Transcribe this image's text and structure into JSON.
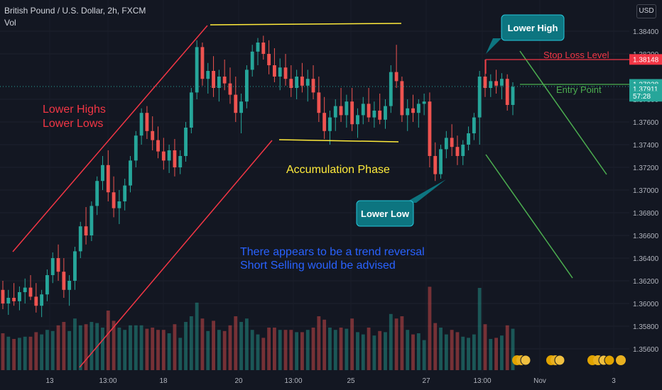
{
  "header": {
    "symbol_line": "British Pound / U.S. Dollar, 2h, FXCM",
    "volume_label": "Vol",
    "currency_button": "USD"
  },
  "colors": {
    "background": "#131722",
    "up": "#26a69a",
    "down": "#ef5350",
    "annotation_red": "#f23645",
    "annotation_yellow": "#ffeb3b",
    "annotation_green": "#4caf50",
    "annotation_blue": "#2962ff",
    "callout_teal": "#0d7580"
  },
  "chart_data": {
    "type": "candlestick",
    "title": "British Pound / U.S. Dollar, 2h, FXCM",
    "x_tick_labels": [
      "13",
      "13:00",
      "18",
      "20",
      "13:00",
      "25",
      "27",
      "13:00",
      "Nov",
      "3"
    ],
    "y_tick_labels": [
      "1.38400",
      "1.38200",
      "1.37800",
      "1.37600",
      "1.37400",
      "1.37200",
      "1.37000",
      "1.36800",
      "1.36600",
      "1.36400",
      "1.36200",
      "1.36000",
      "1.35800",
      "1.35600"
    ],
    "ylim": [
      1.3548,
      1.3862
    ],
    "price_labels": [
      {
        "text": "1.38148",
        "value": 1.38148,
        "color": "#f23645"
      },
      {
        "text": "1.37928",
        "value": 1.37928,
        "color": "#26a69a"
      },
      {
        "text": "1.37911",
        "value": 1.37911,
        "color": "#26a69a"
      },
      {
        "text": "57:28",
        "value": null,
        "color": "#26a69a"
      }
    ],
    "current_price": 1.37911,
    "candles": [
      {
        "o": 1.3612,
        "h": 1.362,
        "l": 1.3595,
        "c": 1.36
      },
      {
        "o": 1.36,
        "h": 1.3612,
        "l": 1.359,
        "c": 1.3605
      },
      {
        "o": 1.3605,
        "h": 1.3618,
        "l": 1.3598,
        "c": 1.3602
      },
      {
        "o": 1.3602,
        "h": 1.3615,
        "l": 1.3594,
        "c": 1.361
      },
      {
        "o": 1.361,
        "h": 1.3622,
        "l": 1.36,
        "c": 1.3614
      },
      {
        "o": 1.3614,
        "h": 1.3625,
        "l": 1.3603,
        "c": 1.3606
      },
      {
        "o": 1.3606,
        "h": 1.3618,
        "l": 1.3592,
        "c": 1.3598
      },
      {
        "o": 1.3598,
        "h": 1.3612,
        "l": 1.3588,
        "c": 1.3608
      },
      {
        "o": 1.3608,
        "h": 1.363,
        "l": 1.3602,
        "c": 1.3625
      },
      {
        "o": 1.3625,
        "h": 1.3645,
        "l": 1.3618,
        "c": 1.364
      },
      {
        "o": 1.364,
        "h": 1.3652,
        "l": 1.362,
        "c": 1.3628
      },
      {
        "o": 1.3628,
        "h": 1.364,
        "l": 1.3605,
        "c": 1.3612
      },
      {
        "o": 1.3612,
        "h": 1.3625,
        "l": 1.3598,
        "c": 1.362
      },
      {
        "o": 1.362,
        "h": 1.365,
        "l": 1.3612,
        "c": 1.3646
      },
      {
        "o": 1.3646,
        "h": 1.3672,
        "l": 1.364,
        "c": 1.3668
      },
      {
        "o": 1.3668,
        "h": 1.3685,
        "l": 1.3652,
        "c": 1.366
      },
      {
        "o": 1.366,
        "h": 1.369,
        "l": 1.3655,
        "c": 1.3686
      },
      {
        "o": 1.3686,
        "h": 1.3712,
        "l": 1.3678,
        "c": 1.3708
      },
      {
        "o": 1.3708,
        "h": 1.373,
        "l": 1.37,
        "c": 1.3722
      },
      {
        "o": 1.3722,
        "h": 1.3735,
        "l": 1.369,
        "c": 1.3698
      },
      {
        "o": 1.3698,
        "h": 1.3712,
        "l": 1.3676,
        "c": 1.3684
      },
      {
        "o": 1.3684,
        "h": 1.37,
        "l": 1.367,
        "c": 1.369
      },
      {
        "o": 1.369,
        "h": 1.371,
        "l": 1.3682,
        "c": 1.3704
      },
      {
        "o": 1.3704,
        "h": 1.373,
        "l": 1.3698,
        "c": 1.3726
      },
      {
        "o": 1.3726,
        "h": 1.3752,
        "l": 1.372,
        "c": 1.3748
      },
      {
        "o": 1.3748,
        "h": 1.3772,
        "l": 1.374,
        "c": 1.3768
      },
      {
        "o": 1.3768,
        "h": 1.3774,
        "l": 1.3745,
        "c": 1.3752
      },
      {
        "o": 1.3752,
        "h": 1.3765,
        "l": 1.3735,
        "c": 1.3744
      },
      {
        "o": 1.3744,
        "h": 1.3756,
        "l": 1.3728,
        "c": 1.3734
      },
      {
        "o": 1.3734,
        "h": 1.3746,
        "l": 1.3718,
        "c": 1.3726
      },
      {
        "o": 1.3726,
        "h": 1.374,
        "l": 1.3715,
        "c": 1.3735
      },
      {
        "o": 1.3735,
        "h": 1.3745,
        "l": 1.3712,
        "c": 1.372
      },
      {
        "o": 1.372,
        "h": 1.3735,
        "l": 1.3714,
        "c": 1.373
      },
      {
        "o": 1.373,
        "h": 1.376,
        "l": 1.3725,
        "c": 1.3755
      },
      {
        "o": 1.3755,
        "h": 1.379,
        "l": 1.375,
        "c": 1.3786
      },
      {
        "o": 1.3786,
        "h": 1.3832,
        "l": 1.378,
        "c": 1.3826
      },
      {
        "o": 1.3826,
        "h": 1.383,
        "l": 1.3792,
        "c": 1.3798
      },
      {
        "o": 1.3798,
        "h": 1.3812,
        "l": 1.3785,
        "c": 1.3805
      },
      {
        "o": 1.3805,
        "h": 1.3818,
        "l": 1.3782,
        "c": 1.379
      },
      {
        "o": 1.379,
        "h": 1.3806,
        "l": 1.3778,
        "c": 1.38
      },
      {
        "o": 1.38,
        "h": 1.3815,
        "l": 1.3788,
        "c": 1.3794
      },
      {
        "o": 1.3794,
        "h": 1.3808,
        "l": 1.3776,
        "c": 1.3784
      },
      {
        "o": 1.3784,
        "h": 1.38,
        "l": 1.376,
        "c": 1.3768
      },
      {
        "o": 1.3768,
        "h": 1.3785,
        "l": 1.375,
        "c": 1.3778
      },
      {
        "o": 1.3778,
        "h": 1.381,
        "l": 1.3772,
        "c": 1.3806
      },
      {
        "o": 1.3806,
        "h": 1.3828,
        "l": 1.38,
        "c": 1.3822
      },
      {
        "o": 1.3822,
        "h": 1.3834,
        "l": 1.381,
        "c": 1.383
      },
      {
        "o": 1.383,
        "h": 1.3836,
        "l": 1.3815,
        "c": 1.382
      },
      {
        "o": 1.382,
        "h": 1.3832,
        "l": 1.3802,
        "c": 1.381
      },
      {
        "o": 1.381,
        "h": 1.3825,
        "l": 1.3795,
        "c": 1.38
      },
      {
        "o": 1.38,
        "h": 1.3816,
        "l": 1.3788,
        "c": 1.3808
      },
      {
        "o": 1.3808,
        "h": 1.382,
        "l": 1.3792,
        "c": 1.3798
      },
      {
        "o": 1.3798,
        "h": 1.381,
        "l": 1.3782,
        "c": 1.379
      },
      {
        "o": 1.379,
        "h": 1.3806,
        "l": 1.378,
        "c": 1.38
      },
      {
        "o": 1.38,
        "h": 1.3812,
        "l": 1.3786,
        "c": 1.3792
      },
      {
        "o": 1.3792,
        "h": 1.3806,
        "l": 1.3778,
        "c": 1.3798
      },
      {
        "o": 1.3798,
        "h": 1.381,
        "l": 1.378,
        "c": 1.3786
      },
      {
        "o": 1.3786,
        "h": 1.38,
        "l": 1.376,
        "c": 1.3768
      },
      {
        "o": 1.3768,
        "h": 1.3782,
        "l": 1.3745,
        "c": 1.3752
      },
      {
        "o": 1.3752,
        "h": 1.377,
        "l": 1.374,
        "c": 1.3764
      },
      {
        "o": 1.3764,
        "h": 1.378,
        "l": 1.3752,
        "c": 1.3774
      },
      {
        "o": 1.3774,
        "h": 1.379,
        "l": 1.376,
        "c": 1.3766
      },
      {
        "o": 1.3766,
        "h": 1.3784,
        "l": 1.3755,
        "c": 1.3778
      },
      {
        "o": 1.3778,
        "h": 1.379,
        "l": 1.3752,
        "c": 1.3758
      },
      {
        "o": 1.3758,
        "h": 1.3772,
        "l": 1.3746,
        "c": 1.3766
      },
      {
        "o": 1.3766,
        "h": 1.3782,
        "l": 1.3758,
        "c": 1.3776
      },
      {
        "o": 1.3776,
        "h": 1.379,
        "l": 1.376,
        "c": 1.3764
      },
      {
        "o": 1.3764,
        "h": 1.3778,
        "l": 1.3755,
        "c": 1.377
      },
      {
        "o": 1.377,
        "h": 1.3785,
        "l": 1.3758,
        "c": 1.3762
      },
      {
        "o": 1.3762,
        "h": 1.378,
        "l": 1.3754,
        "c": 1.3774
      },
      {
        "o": 1.3774,
        "h": 1.381,
        "l": 1.3768,
        "c": 1.3804
      },
      {
        "o": 1.3804,
        "h": 1.3828,
        "l": 1.379,
        "c": 1.3796
      },
      {
        "o": 1.3796,
        "h": 1.38,
        "l": 1.376,
        "c": 1.3766
      },
      {
        "o": 1.3766,
        "h": 1.378,
        "l": 1.3752,
        "c": 1.3772
      },
      {
        "o": 1.3772,
        "h": 1.3784,
        "l": 1.376,
        "c": 1.3768
      },
      {
        "o": 1.3768,
        "h": 1.378,
        "l": 1.3755,
        "c": 1.3776
      },
      {
        "o": 1.3776,
        "h": 1.3785,
        "l": 1.3766,
        "c": 1.3778
      },
      {
        "o": 1.3778,
        "h": 1.3786,
        "l": 1.372,
        "c": 1.373
      },
      {
        "o": 1.373,
        "h": 1.3742,
        "l": 1.3708,
        "c": 1.3714
      },
      {
        "o": 1.3714,
        "h": 1.374,
        "l": 1.371,
        "c": 1.3736
      },
      {
        "o": 1.3736,
        "h": 1.3752,
        "l": 1.3728,
        "c": 1.3746
      },
      {
        "o": 1.3746,
        "h": 1.3758,
        "l": 1.373,
        "c": 1.3738
      },
      {
        "o": 1.3738,
        "h": 1.3748,
        "l": 1.3722,
        "c": 1.373
      },
      {
        "o": 1.373,
        "h": 1.3744,
        "l": 1.3722,
        "c": 1.374
      },
      {
        "o": 1.374,
        "h": 1.3756,
        "l": 1.3735,
        "c": 1.375
      },
      {
        "o": 1.375,
        "h": 1.3768,
        "l": 1.3744,
        "c": 1.3764
      },
      {
        "o": 1.3764,
        "h": 1.3805,
        "l": 1.374,
        "c": 1.38
      },
      {
        "o": 1.38,
        "h": 1.3815,
        "l": 1.3782,
        "c": 1.379
      },
      {
        "o": 1.379,
        "h": 1.3802,
        "l": 1.3782,
        "c": 1.3796
      },
      {
        "o": 1.3796,
        "h": 1.3806,
        "l": 1.3785,
        "c": 1.3792
      },
      {
        "o": 1.3792,
        "h": 1.3803,
        "l": 1.378,
        "c": 1.3798
      },
      {
        "o": 1.3798,
        "h": 1.3802,
        "l": 1.377,
        "c": 1.3775
      },
      {
        "o": 1.3775,
        "h": 1.3795,
        "l": 1.3766,
        "c": 1.3791
      }
    ],
    "annotations": [
      {
        "text": "Lower Highs",
        "color": "#f23645"
      },
      {
        "text": "Lower Lows",
        "color": "#f23645"
      },
      {
        "text": "Accumulation Phase",
        "color": "#ffeb3b"
      },
      {
        "text": "There appears to be a trend reversal",
        "color": "#2962ff"
      },
      {
        "text": "Short Selling would be advised",
        "color": "#2962ff"
      },
      {
        "text": "Stop Loss Level",
        "color": "#f23645"
      },
      {
        "text": "Entry Point",
        "color": "#4caf50"
      }
    ],
    "callouts": [
      "Lower High",
      "Lower Low"
    ]
  }
}
